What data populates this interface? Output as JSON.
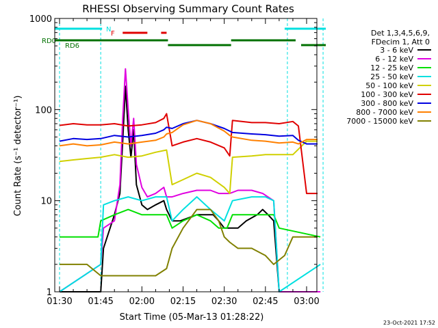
{
  "chart_data": {
    "type": "line",
    "title": "RHESSI Observing Summary Count Rates",
    "xlabel": "Start Time (05-Mar-13 01:28:22)",
    "ylabel": "Count Rate (s⁻¹ detector⁻¹)",
    "y_scale": "log",
    "ylim": [
      1,
      1000
    ],
    "xlim": [
      "01:28:22",
      "03:07:00"
    ],
    "x_ticks": [
      "01:30",
      "01:45",
      "02:00",
      "02:15",
      "02:30",
      "02:45",
      "03:00"
    ],
    "y_ticks": [
      "1",
      "10",
      "100",
      "1000"
    ],
    "legend_placement": "right",
    "legend_header": [
      "Det 1,3,4,5,6,9,",
      "FDecim 1, Att 0"
    ],
    "timestamp": "23-Oct-2021 17:52",
    "status_bars": [
      {
        "label": "N",
        "color": "#00e0e0",
        "segments": [
          [
            "01:28:22",
            "01:45:30"
          ],
          [
            "02:52:00",
            "03:07:00"
          ]
        ]
      },
      {
        "label": "F",
        "color": "#e00000",
        "segments": [
          [
            "01:53:00",
            "02:02:00"
          ],
          [
            "02:07:00",
            "02:09:00"
          ]
        ]
      },
      {
        "label": "RD0",
        "color": "#007000",
        "segments": [
          [
            "01:28:22",
            "02:09:30"
          ],
          [
            "02:32:30",
            "02:56:00"
          ]
        ]
      },
      {
        "label": "RD6",
        "color": "#007000",
        "segments": [
          [
            "02:09:30",
            "02:32:30"
          ],
          [
            "02:58:00",
            "03:07:00"
          ]
        ]
      }
    ],
    "night_markers": [
      "01:30:00",
      "01:45:00",
      "02:53:00",
      "03:06:00"
    ],
    "series": [
      {
        "name": "3 - 6 keV",
        "color": "#000000",
        "values": [
          [
            "01:30",
            1
          ],
          [
            "01:45",
            1
          ],
          [
            "01:46",
            3
          ],
          [
            "01:50",
            7
          ],
          [
            "01:52",
            12
          ],
          [
            "01:53",
            45
          ],
          [
            "01:54",
            180
          ],
          [
            "01:55",
            60
          ],
          [
            "01:56",
            30
          ],
          [
            "01:57",
            60
          ],
          [
            "01:58",
            15
          ],
          [
            "02:00",
            9
          ],
          [
            "02:02",
            8
          ],
          [
            "02:05",
            9
          ],
          [
            "02:08",
            10
          ],
          [
            "02:09",
            8
          ],
          [
            "02:11",
            6
          ],
          [
            "02:14",
            6
          ],
          [
            "02:20",
            7
          ],
          [
            "02:26",
            7
          ],
          [
            "02:28",
            6
          ],
          [
            "02:30",
            5
          ],
          [
            "02:32",
            5
          ],
          [
            "02:35",
            5
          ],
          [
            "02:38",
            6
          ],
          [
            "02:42",
            7
          ],
          [
            "02:44",
            8
          ],
          [
            "02:46",
            7
          ],
          [
            "02:48",
            6
          ],
          [
            "02:50",
            1
          ],
          [
            "03:05",
            1
          ]
        ]
      },
      {
        "name": "6 - 12 keV",
        "color": "#e000e0",
        "values": [
          [
            "01:30",
            1
          ],
          [
            "01:45",
            2
          ],
          [
            "01:46",
            5
          ],
          [
            "01:50",
            6
          ],
          [
            "01:52",
            15
          ],
          [
            "01:53",
            80
          ],
          [
            "01:54",
            280
          ],
          [
            "01:55",
            100
          ],
          [
            "01:56",
            40
          ],
          [
            "01:57",
            80
          ],
          [
            "01:58",
            25
          ],
          [
            "02:00",
            14
          ],
          [
            "02:02",
            11
          ],
          [
            "02:05",
            12
          ],
          [
            "02:08",
            14
          ],
          [
            "02:09",
            11
          ],
          [
            "02:11",
            11
          ],
          [
            "02:15",
            12
          ],
          [
            "02:20",
            13
          ],
          [
            "02:25",
            13
          ],
          [
            "02:28",
            12
          ],
          [
            "02:32",
            12
          ],
          [
            "02:35",
            13
          ],
          [
            "02:40",
            13
          ],
          [
            "02:44",
            12
          ],
          [
            "02:48",
            10
          ],
          [
            "02:50",
            1
          ],
          [
            "03:05",
            1
          ]
        ]
      },
      {
        "name": "12 - 25 keV",
        "color": "#00e000",
        "values": [
          [
            "01:30",
            4
          ],
          [
            "01:44",
            4
          ],
          [
            "01:45",
            6
          ],
          [
            "01:50",
            7
          ],
          [
            "01:55",
            8
          ],
          [
            "02:00",
            7
          ],
          [
            "02:05",
            7
          ],
          [
            "02:09",
            7
          ],
          [
            "02:11",
            5
          ],
          [
            "02:15",
            6
          ],
          [
            "02:20",
            7
          ],
          [
            "02:25",
            6
          ],
          [
            "02:28",
            5
          ],
          [
            "02:31",
            5
          ],
          [
            "02:33",
            7
          ],
          [
            "02:40",
            7
          ],
          [
            "02:45",
            7
          ],
          [
            "02:48",
            7
          ],
          [
            "02:50",
            5
          ],
          [
            "03:05",
            4
          ]
        ]
      },
      {
        "name": "25 - 50 keV",
        "color": "#00e0e0",
        "values": [
          [
            "01:30",
            1
          ],
          [
            "01:45",
            2
          ],
          [
            "01:46",
            9
          ],
          [
            "01:50",
            10
          ],
          [
            "01:55",
            11
          ],
          [
            "02:00",
            10
          ],
          [
            "02:05",
            11
          ],
          [
            "02:09",
            11
          ],
          [
            "02:11",
            6
          ],
          [
            "02:15",
            8
          ],
          [
            "02:20",
            11
          ],
          [
            "02:25",
            8
          ],
          [
            "02:30",
            6
          ],
          [
            "02:33",
            10
          ],
          [
            "02:40",
            11
          ],
          [
            "02:45",
            11
          ],
          [
            "02:48",
            10
          ],
          [
            "02:50",
            1
          ],
          [
            "03:05",
            2
          ]
        ]
      },
      {
        "name": "50 - 100 keV",
        "color": "#d0d000",
        "values": [
          [
            "01:30",
            27
          ],
          [
            "01:35",
            28
          ],
          [
            "01:40",
            29
          ],
          [
            "01:45",
            30
          ],
          [
            "01:50",
            32
          ],
          [
            "01:55",
            30
          ],
          [
            "02:00",
            31
          ],
          [
            "02:05",
            34
          ],
          [
            "02:09",
            36
          ],
          [
            "02:11",
            15
          ],
          [
            "02:15",
            17
          ],
          [
            "02:20",
            20
          ],
          [
            "02:25",
            18
          ],
          [
            "02:30",
            14
          ],
          [
            "02:32",
            12
          ],
          [
            "02:33",
            30
          ],
          [
            "02:40",
            31
          ],
          [
            "02:45",
            32
          ],
          [
            "02:50",
            32
          ],
          [
            "02:55",
            32
          ],
          [
            "03:00",
            45
          ],
          [
            "03:04",
            45
          ]
        ]
      },
      {
        "name": "100 - 300 keV",
        "color": "#e00000",
        "values": [
          [
            "01:30",
            67
          ],
          [
            "01:35",
            70
          ],
          [
            "01:40",
            68
          ],
          [
            "01:45",
            68
          ],
          [
            "01:50",
            70
          ],
          [
            "01:55",
            66
          ],
          [
            "02:00",
            68
          ],
          [
            "02:05",
            72
          ],
          [
            "02:08",
            80
          ],
          [
            "02:09",
            90
          ],
          [
            "02:11",
            40
          ],
          [
            "02:15",
            44
          ],
          [
            "02:20",
            48
          ],
          [
            "02:25",
            44
          ],
          [
            "02:30",
            38
          ],
          [
            "02:32",
            31
          ],
          [
            "02:33",
            76
          ],
          [
            "02:40",
            72
          ],
          [
            "02:45",
            72
          ],
          [
            "02:50",
            70
          ],
          [
            "02:55",
            74
          ],
          [
            "02:57",
            66
          ],
          [
            "03:00",
            12
          ],
          [
            "03:04",
            12
          ]
        ]
      },
      {
        "name": "300 - 800 keV",
        "color": "#0000e0",
        "values": [
          [
            "01:30",
            45
          ],
          [
            "01:35",
            48
          ],
          [
            "01:40",
            47
          ],
          [
            "01:45",
            48
          ],
          [
            "01:50",
            52
          ],
          [
            "01:55",
            50
          ],
          [
            "02:00",
            52
          ],
          [
            "02:05",
            55
          ],
          [
            "02:08",
            60
          ],
          [
            "02:09",
            64
          ],
          [
            "02:11",
            62
          ],
          [
            "02:15",
            70
          ],
          [
            "02:20",
            76
          ],
          [
            "02:25",
            70
          ],
          [
            "02:30",
            62
          ],
          [
            "02:32",
            58
          ],
          [
            "02:33",
            56
          ],
          [
            "02:40",
            54
          ],
          [
            "02:45",
            53
          ],
          [
            "02:50",
            51
          ],
          [
            "02:55",
            52
          ],
          [
            "02:57",
            46
          ],
          [
            "03:00",
            42
          ],
          [
            "03:04",
            42
          ]
        ]
      },
      {
        "name": "800 - 7000 keV",
        "color": "#ff8000",
        "values": [
          [
            "01:30",
            40
          ],
          [
            "01:35",
            42
          ],
          [
            "01:40",
            40
          ],
          [
            "01:45",
            41
          ],
          [
            "01:50",
            44
          ],
          [
            "01:55",
            42
          ],
          [
            "02:00",
            44
          ],
          [
            "02:05",
            46
          ],
          [
            "02:08",
            50
          ],
          [
            "02:09",
            54
          ],
          [
            "02:11",
            56
          ],
          [
            "02:15",
            68
          ],
          [
            "02:20",
            76
          ],
          [
            "02:25",
            70
          ],
          [
            "02:30",
            58
          ],
          [
            "02:32",
            52
          ],
          [
            "02:33",
            50
          ],
          [
            "02:40",
            46
          ],
          [
            "02:45",
            45
          ],
          [
            "02:50",
            43
          ],
          [
            "02:55",
            44
          ],
          [
            "02:57",
            42
          ],
          [
            "03:00",
            47
          ],
          [
            "03:04",
            47
          ]
        ]
      },
      {
        "name": "7000 - 15000 keV",
        "color": "#808000",
        "values": [
          [
            "01:30",
            2
          ],
          [
            "01:40",
            2
          ],
          [
            "01:45",
            1.5
          ],
          [
            "01:50",
            1.5
          ],
          [
            "02:00",
            1.5
          ],
          [
            "02:05",
            1.5
          ],
          [
            "02:09",
            1.8
          ],
          [
            "02:11",
            3
          ],
          [
            "02:15",
            5
          ],
          [
            "02:20",
            8
          ],
          [
            "02:25",
            8
          ],
          [
            "02:28",
            6
          ],
          [
            "02:30",
            4
          ],
          [
            "02:32",
            3.5
          ],
          [
            "02:35",
            3
          ],
          [
            "02:40",
            3
          ],
          [
            "02:45",
            2.5
          ],
          [
            "02:48",
            2
          ],
          [
            "02:52",
            2.5
          ],
          [
            "02:55",
            4
          ],
          [
            "03:00",
            4
          ],
          [
            "03:04",
            4
          ]
        ]
      }
    ]
  }
}
